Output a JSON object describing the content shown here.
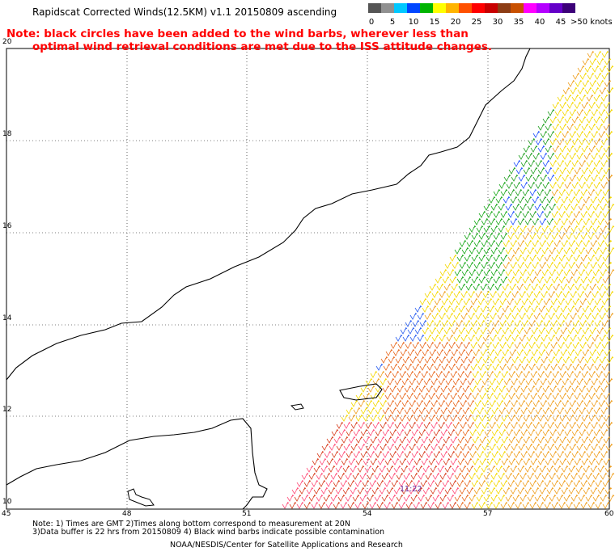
{
  "header": {
    "title": "Rapidscat Corrected Winds(12.5KM) v1.1 20150809 ascending",
    "note_line1": "Note: black circles have been added to the wind barbs, wherever less than",
    "note_line2": "optimal wind retrieval conditions are met due to the ISS attitude changes."
  },
  "legend": {
    "labels": [
      "0",
      "5",
      "10",
      "15",
      "20",
      "25",
      "30",
      "35",
      "40",
      "45",
      ">50 knots"
    ],
    "colors": [
      "#555555",
      "#909090",
      "#00c8ff",
      "#0046ff",
      "#00b400",
      "#ffff00",
      "#ffb400",
      "#ff5000",
      "#ff0000",
      "#c80000",
      "#8c3c14",
      "#c85000",
      "#ff00ff",
      "#b400ff",
      "#6400c8",
      "#3c0078"
    ]
  },
  "axes": {
    "lat_labels": [
      "20",
      "18",
      "16",
      "14",
      "12",
      "10"
    ],
    "lon_labels": [
      "45",
      "48",
      "51",
      "54",
      "57",
      "60"
    ]
  },
  "time_label": "11:22",
  "footer": {
    "line1": "Note: 1) Times are GMT 2)Times along bottom correspond to measurement at 20N",
    "line2": "3)Data buffer is 22 hrs from 20150809 4) Black wind barbs indicate possible contamination",
    "line3": "NOAA/NESDIS/Center for Satellite Applications and Research"
  }
}
